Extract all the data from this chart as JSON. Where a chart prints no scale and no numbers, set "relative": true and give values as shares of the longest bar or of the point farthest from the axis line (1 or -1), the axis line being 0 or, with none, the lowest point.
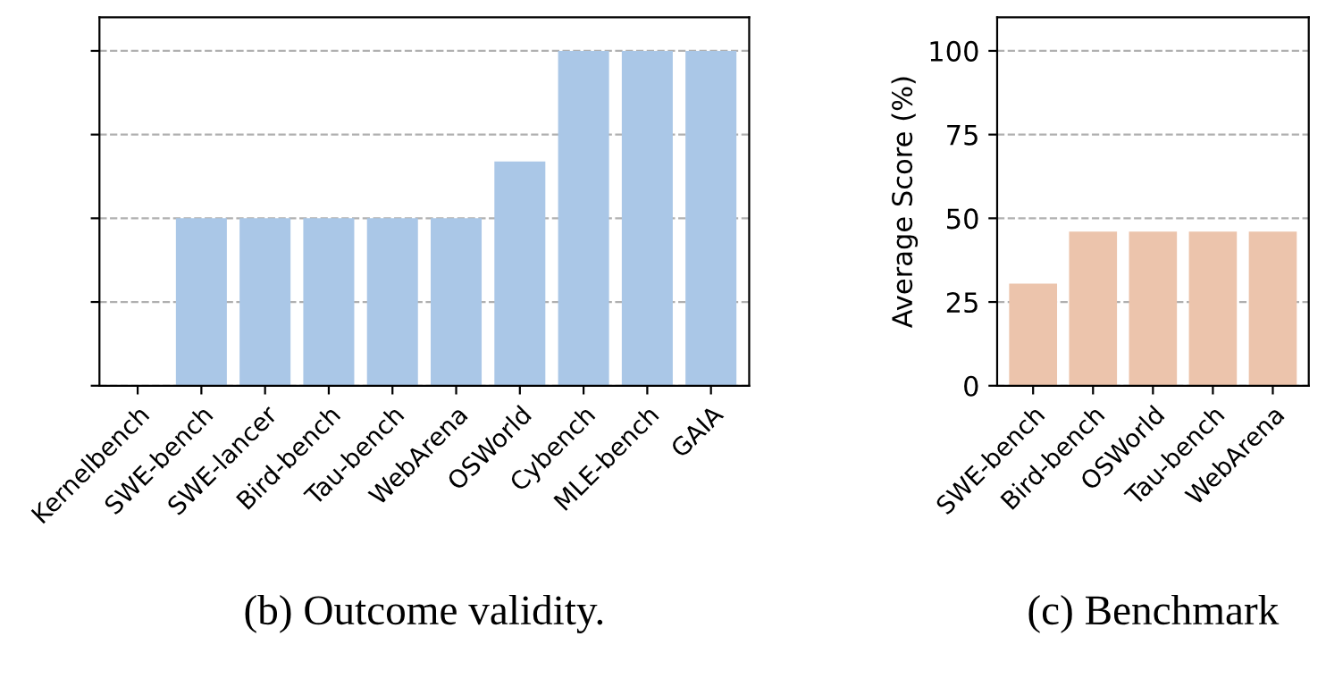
{
  "chart_data": [
    {
      "type": "bar",
      "title": "(b) Outcome validity.",
      "relative": true,
      "grid": "y",
      "categories": [
        "Kernelbench",
        "SWE-bench",
        "SWE-lancer",
        "Bird-bench",
        "Tau-bench",
        "WebArena",
        "OSWorld",
        "Cybench",
        "MLE-bench",
        "GAIA"
      ],
      "values": [
        0,
        0.5,
        0.5,
        0.5,
        0.5,
        0.5,
        0.67,
        1,
        1,
        1
      ],
      "color": "#aac7e7"
    },
    {
      "type": "bar",
      "title": "(c) Benchmark",
      "ylabel": "Average Score (%)",
      "grid": "y",
      "categories": [
        "SWE-bench",
        "Bird-bench",
        "OSWorld",
        "Tau-bench",
        "WebArena"
      ],
      "values": [
        30.5,
        46,
        46,
        46,
        46
      ],
      "color": "#ecc4ac",
      "ylim": [
        0,
        110
      ],
      "yticks": [
        0,
        25,
        50,
        75,
        100
      ]
    }
  ]
}
